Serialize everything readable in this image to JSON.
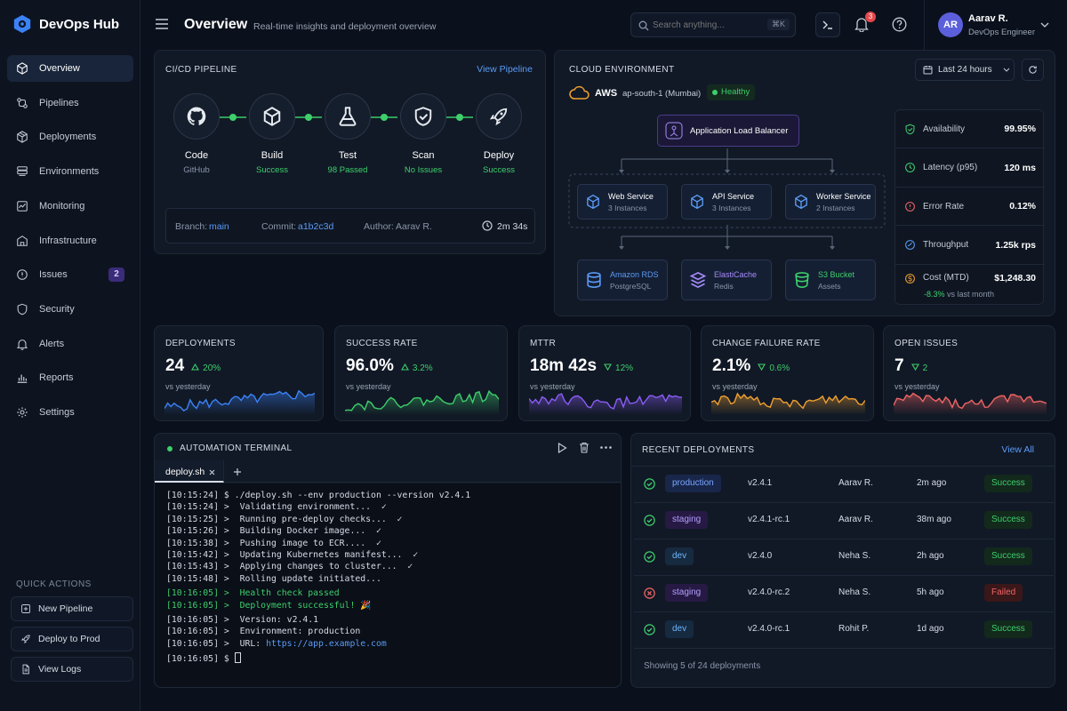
{
  "app": {
    "name": "DevOps Hub"
  },
  "sidebar": {
    "items": [
      {
        "label": "Overview",
        "icon": "cube-icon",
        "active": true
      },
      {
        "label": "Pipelines",
        "icon": "pipeline-icon"
      },
      {
        "label": "Deployments",
        "icon": "package-icon"
      },
      {
        "label": "Environments",
        "icon": "server-stack-icon"
      },
      {
        "label": "Monitoring",
        "icon": "chart-icon"
      },
      {
        "label": "Infrastructure",
        "icon": "infrastructure-icon"
      },
      {
        "label": "Issues",
        "icon": "bug-icon",
        "badge": "2"
      },
      {
        "label": "Security",
        "icon": "shield-icon"
      },
      {
        "label": "Alerts",
        "icon": "bell-icon"
      },
      {
        "label": "Reports",
        "icon": "bar-chart-icon"
      },
      {
        "label": "Settings",
        "icon": "gear-icon"
      }
    ],
    "quick_actions_title": "QUICK ACTIONS",
    "quick_actions": [
      {
        "label": "New Pipeline",
        "icon": "plus-square-icon"
      },
      {
        "label": "Deploy to Prod",
        "icon": "rocket-icon"
      },
      {
        "label": "View Logs",
        "icon": "document-icon"
      }
    ]
  },
  "header": {
    "title": "Overview",
    "subtitle": "Real-time insights and deployment overview",
    "search_placeholder": "Search anything...",
    "search_shortcut": "⌘K",
    "notification_count": "3",
    "user": {
      "initials": "AR",
      "name": "Aarav R.",
      "role": "DevOps Engineer"
    }
  },
  "pipeline": {
    "title": "CI/CD PIPELINE",
    "link": "View Pipeline",
    "stages": [
      {
        "name": "Code",
        "sub": "GitHub",
        "icon": "github-icon",
        "status": "neutral"
      },
      {
        "name": "Build",
        "sub": "Success",
        "icon": "box-icon",
        "status": "ok"
      },
      {
        "name": "Test",
        "sub": "98 Passed",
        "icon": "flask-icon",
        "status": "ok"
      },
      {
        "name": "Scan",
        "sub": "No Issues",
        "icon": "shield-check-icon",
        "status": "ok"
      },
      {
        "name": "Deploy",
        "sub": "Success",
        "icon": "rocket-icon",
        "status": "ok"
      }
    ],
    "branch_label": "Branch:",
    "branch": "main",
    "commit_label": "Commit:",
    "commit": "a1b2c3d",
    "author_label": "Author:",
    "author": "Aarav R.",
    "duration": "2m 34s"
  },
  "cloud": {
    "title": "CLOUD ENVIRONMENT",
    "range": "Last 24 hours",
    "provider": "AWS",
    "region": "ap-south-1 (Mumbai)",
    "health": "Healthy",
    "lb": "Application Load Balancer",
    "services": [
      {
        "name": "Web Service",
        "sub": "3 Instances"
      },
      {
        "name": "API Service",
        "sub": "3 Instances"
      },
      {
        "name": "Worker Service",
        "sub": "2 Instances"
      }
    ],
    "stores": [
      {
        "name": "Amazon RDS",
        "sub": "PostgreSQL",
        "icon": "database-icon"
      },
      {
        "name": "ElastiCache",
        "sub": "Redis",
        "icon": "cache-icon"
      },
      {
        "name": "S3 Bucket",
        "sub": "Assets",
        "icon": "bucket-icon"
      }
    ],
    "metrics": [
      {
        "label": "Availability",
        "value": "99.95%",
        "icon": "shield-check-icon",
        "color": "#3ecf6b"
      },
      {
        "label": "Latency (p95)",
        "value": "120 ms",
        "icon": "clock-icon",
        "color": "#3ecf6b"
      },
      {
        "label": "Error Rate",
        "value": "0.12%",
        "icon": "alert-icon",
        "color": "#f06565"
      },
      {
        "label": "Throughput",
        "value": "1.25k rps",
        "icon": "gauge-icon",
        "color": "#5b9bf5"
      },
      {
        "label": "Cost (MTD)",
        "value": "$1,248.30",
        "icon": "dollar-icon",
        "color": "#f0a030",
        "delta": "-8.3%",
        "delta_note": "vs last month"
      }
    ]
  },
  "kpis": [
    {
      "title": "DEPLOYMENTS",
      "value": "24",
      "delta": "20%",
      "dir": "up",
      "sub": "vs yesterday",
      "color": "#3b82f6"
    },
    {
      "title": "SUCCESS RATE",
      "value": "96.0%",
      "delta": "3.2%",
      "dir": "up",
      "sub": "vs yesterday",
      "color": "#3ecf6b"
    },
    {
      "title": "MTTR",
      "value": "18m 42s",
      "delta": "12%",
      "dir": "down",
      "sub": "vs yesterday",
      "color": "#8b5cf6"
    },
    {
      "title": "CHANGE FAILURE RATE",
      "value": "2.1%",
      "delta": "0.6%",
      "dir": "down",
      "sub": "vs yesterday",
      "color": "#f0a030"
    },
    {
      "title": "OPEN ISSUES",
      "value": "7",
      "delta": "2",
      "dir": "down",
      "sub": "vs yesterday",
      "color": "#f06565"
    }
  ],
  "terminal": {
    "title": "AUTOMATION TERMINAL",
    "tab": "deploy.sh",
    "lines": [
      {
        "ts": "[10:15:24]",
        "text": "$ ./deploy.sh --env production --version v2.4.1",
        "tone": "plain"
      },
      {
        "ts": "[10:15:24]",
        "text": ">  Validating environment...  ✓",
        "tone": "plain"
      },
      {
        "ts": "[10:15:25]",
        "text": ">  Running pre-deploy checks...  ✓",
        "tone": "plain"
      },
      {
        "ts": "[10:15:26]",
        "text": ">  Building Docker image...  ✓",
        "tone": "plain"
      },
      {
        "ts": "[10:15:38]",
        "text": ">  Pushing image to ECR....  ✓",
        "tone": "plain"
      },
      {
        "ts": "[10:15:42]",
        "text": ">  Updating Kubernetes manifest...  ✓",
        "tone": "plain"
      },
      {
        "ts": "[10:15:43]",
        "text": ">  Applying changes to cluster...  ✓",
        "tone": "plain"
      },
      {
        "ts": "[10:15:48]",
        "text": ">  Rolling update initiated...",
        "tone": "plain"
      },
      {
        "ts": "[10:16:05]",
        "text": ">  Health check passed",
        "tone": "green"
      },
      {
        "ts": "[10:16:05]",
        "text": ">  Deployment successful! 🎉",
        "tone": "green"
      },
      {
        "ts": "[10:16:05]",
        "text": ">  Version: v2.4.1",
        "tone": "plain"
      },
      {
        "ts": "[10:16:05]",
        "text": ">  Environment: production",
        "tone": "plain"
      },
      {
        "ts": "[10:16:05]",
        "text": ">  URL: ",
        "url": "https://app.example.com",
        "tone": "plain"
      },
      {
        "ts": "[10:16:05]",
        "text": "$ ",
        "tone": "prompt"
      }
    ]
  },
  "recent": {
    "title": "RECENT DEPLOYMENTS",
    "link": "View All",
    "rows": [
      {
        "ok": true,
        "env": "production",
        "version": "v2.4.1",
        "author": "Aarav R.",
        "time": "2m ago",
        "status": "Success"
      },
      {
        "ok": true,
        "env": "staging",
        "version": "v2.4.1-rc.1",
        "author": "Aarav R.",
        "time": "38m ago",
        "status": "Success"
      },
      {
        "ok": true,
        "env": "dev",
        "version": "v2.4.0",
        "author": "Neha S.",
        "time": "2h ago",
        "status": "Success"
      },
      {
        "ok": false,
        "env": "staging",
        "version": "v2.4.0-rc.2",
        "author": "Neha S.",
        "time": "5h ago",
        "status": "Failed"
      },
      {
        "ok": true,
        "env": "dev",
        "version": "v2.4.0-rc.1",
        "author": "Rohit P.",
        "time": "1d ago",
        "status": "Success"
      }
    ],
    "footer": "Showing 5 of 24 deployments"
  }
}
